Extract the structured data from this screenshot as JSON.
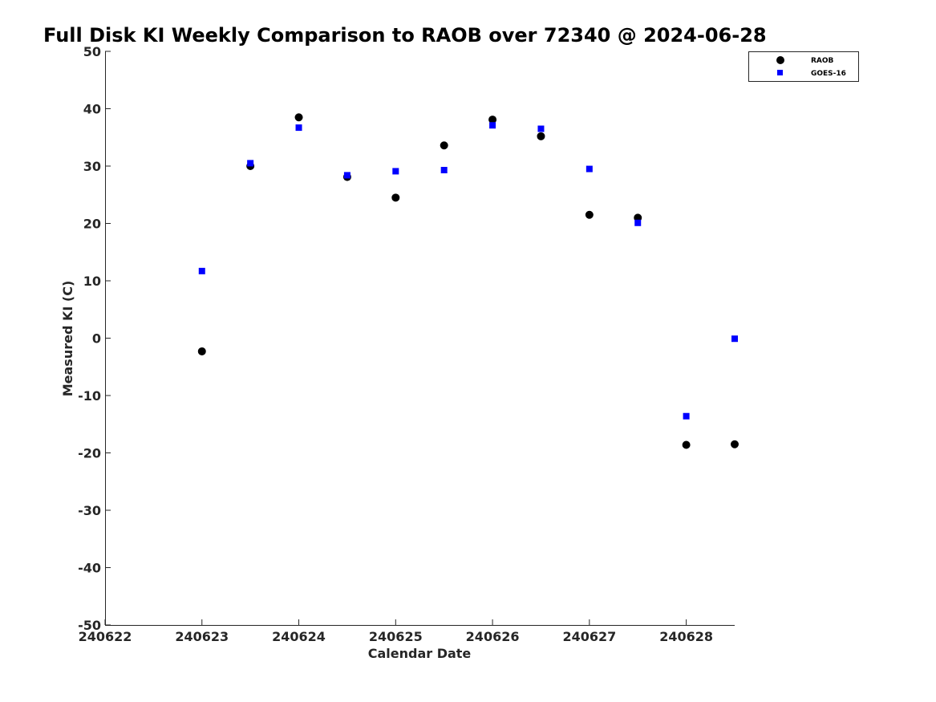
{
  "chart_data": {
    "type": "scatter",
    "title": "Full Disk KI Weekly Comparison to RAOB over 72340 @ 2024-06-28",
    "xlabel": "Calendar Date",
    "ylabel": "Measured KI (C)",
    "xlim": [
      240622,
      240628.5
    ],
    "ylim": [
      -50,
      50
    ],
    "x_ticks": [
      240622,
      240623,
      240624,
      240625,
      240626,
      240627,
      240628
    ],
    "x_tick_labels": [
      "240622",
      "240623",
      "240624",
      "240625",
      "240626",
      "240627",
      "240628"
    ],
    "y_ticks": [
      50,
      40,
      30,
      20,
      10,
      0,
      -10,
      -20,
      -30,
      -40,
      -50
    ],
    "y_tick_labels": [
      "50",
      "40",
      "30",
      "20",
      "10",
      "0",
      "-10",
      "-20",
      "-30",
      "-40",
      "-50"
    ],
    "grid": false,
    "legend_position": "top-right",
    "series": [
      {
        "name": "RAOB",
        "marker": "circle",
        "color": "#000000",
        "x": [
          240623,
          240623.5,
          240624,
          240624.5,
          240625,
          240625.5,
          240626,
          240626.5,
          240627,
          240627.5,
          240628,
          240628.5
        ],
        "y": [
          -2.3,
          30,
          38.5,
          28.1,
          24.5,
          33.6,
          38.1,
          35.2,
          21.5,
          21,
          -18.6,
          -18.5
        ]
      },
      {
        "name": "GOES-16",
        "marker": "square",
        "color": "#0000ff",
        "x": [
          240623,
          240623.5,
          240624,
          240624.5,
          240625,
          240625.5,
          240626,
          240626.5,
          240627,
          240627.5,
          240628,
          240628.5
        ],
        "y": [
          11.7,
          30.5,
          36.7,
          28.4,
          29.1,
          29.3,
          37.1,
          36.5,
          29.5,
          20.1,
          -13.6,
          -0.1
        ]
      }
    ]
  }
}
